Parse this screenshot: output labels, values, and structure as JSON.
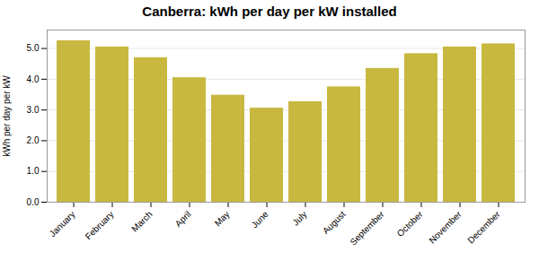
{
  "chart_data": {
    "type": "bar",
    "title": "Canberra:  kWh per day per kW installed",
    "ylabel": "kWh per day per kW",
    "categories": [
      "January",
      "February",
      "March",
      "April",
      "May",
      "June",
      "July",
      "August",
      "September",
      "October",
      "November",
      "December"
    ],
    "values": [
      5.25,
      5.05,
      4.7,
      4.05,
      3.48,
      3.06,
      3.27,
      3.75,
      4.35,
      4.83,
      5.05,
      5.15
    ],
    "color": "#C9B840",
    "ylim": [
      0,
      5.6
    ],
    "yticks": [
      0,
      1,
      2,
      3,
      4,
      5
    ],
    "grid": true
  }
}
